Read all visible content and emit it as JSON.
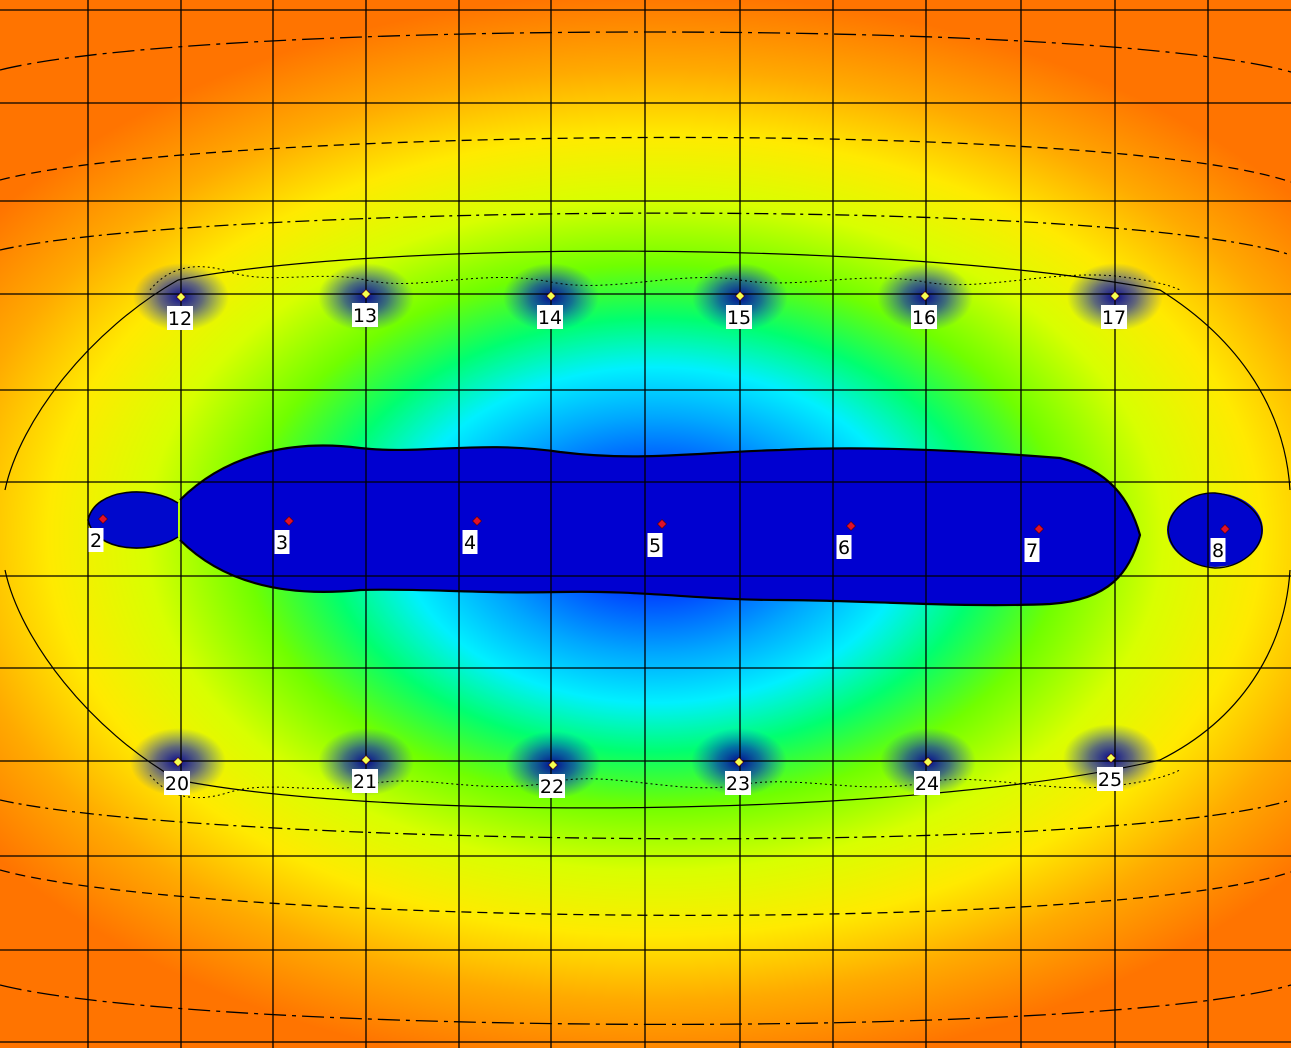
{
  "colors": {
    "scale": [
      "#0000d8",
      "#0044ff",
      "#00a8ff",
      "#00f0ff",
      "#00ff70",
      "#70ff00",
      "#d8ff00",
      "#ffea00",
      "#ffaa00",
      "#ff7400"
    ],
    "grid_line": "#000000",
    "contour_line": "#000000",
    "source_marker": "#e0102a",
    "receiver_marker": "#f4ff50",
    "label_background": "#ffffff"
  },
  "grid": {
    "columns": 13,
    "rows": 11
  },
  "sources": [
    {
      "id": "2",
      "label": "2"
    },
    {
      "id": "3",
      "label": "3"
    },
    {
      "id": "4",
      "label": "4"
    },
    {
      "id": "5",
      "label": "5"
    },
    {
      "id": "6",
      "label": "6"
    },
    {
      "id": "7",
      "label": "7"
    },
    {
      "id": "8",
      "label": "8"
    }
  ],
  "receivers_top": [
    {
      "id": "12",
      "label": "12"
    },
    {
      "id": "13",
      "label": "13"
    },
    {
      "id": "14",
      "label": "14"
    },
    {
      "id": "15",
      "label": "15"
    },
    {
      "id": "16",
      "label": "16"
    },
    {
      "id": "17",
      "label": "17"
    }
  ],
  "receivers_bottom": [
    {
      "id": "20",
      "label": "20"
    },
    {
      "id": "21",
      "label": "21"
    },
    {
      "id": "22",
      "label": "22"
    },
    {
      "id": "23",
      "label": "23"
    },
    {
      "id": "24",
      "label": "24"
    },
    {
      "id": "25",
      "label": "25"
    }
  ]
}
